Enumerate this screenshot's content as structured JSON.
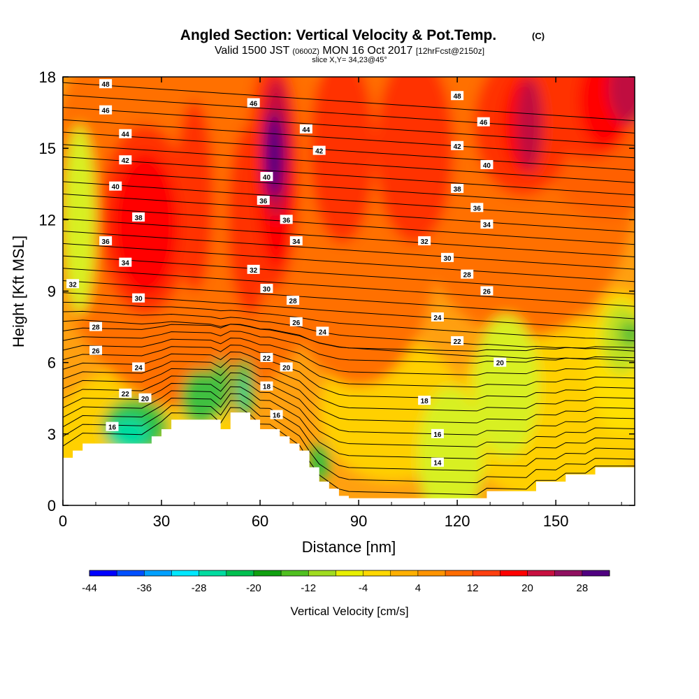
{
  "chart_data": {
    "type": "heatmap",
    "title": "Angled Section: Vertical Velocity & Pot.Temp.",
    "title_mark": "(C)",
    "subtitle_parts": [
      "Valid 1500 JST",
      "(0600Z)",
      "MON 16 Oct 2017",
      "[12hrFcst@2150z]"
    ],
    "slice_text": "slice X,Y= 34,23@45°",
    "xlabel": "Distance [nm]",
    "ylabel": "Height [Kft MSL]",
    "xlim": [
      0,
      174
    ],
    "ylim": [
      0,
      18
    ],
    "xticks": [
      "0",
      "30",
      "60",
      "90",
      "120",
      "150"
    ],
    "yticks": [
      "0",
      "3",
      "6",
      "9",
      "12",
      "15",
      "18"
    ],
    "colorbar": {
      "label": "Vertical Velocity [cm/s]",
      "tick_labels": [
        "-44",
        "-36",
        "-28",
        "-20",
        "-12",
        "-4",
        "4",
        "12",
        "20",
        "28"
      ],
      "colors": [
        "#0000ff",
        "#0050ff",
        "#00a0ff",
        "#00e8ff",
        "#00dca0",
        "#00c050",
        "#10a010",
        "#50c020",
        "#a0dc20",
        "#e8f000",
        "#ffd800",
        "#ffb000",
        "#ff9400",
        "#ff6c00",
        "#ff4010",
        "#ff0000",
        "#c81040",
        "#901060",
        "#500080"
      ]
    },
    "terrain_kft": [
      [
        0,
        2
      ],
      [
        3,
        2
      ],
      [
        3,
        2.3
      ],
      [
        6,
        2.3
      ],
      [
        6,
        2.6
      ],
      [
        27,
        2.6
      ],
      [
        27,
        2.9
      ],
      [
        30,
        2.9
      ],
      [
        30,
        3.2
      ],
      [
        33,
        3.2
      ],
      [
        33,
        3.6
      ],
      [
        48,
        3.6
      ],
      [
        48,
        3.2
      ],
      [
        51,
        3.2
      ],
      [
        51,
        3.9
      ],
      [
        57,
        3.9
      ],
      [
        57,
        3.6
      ],
      [
        60,
        3.6
      ],
      [
        60,
        3.2
      ],
      [
        66,
        3.2
      ],
      [
        66,
        2.9
      ],
      [
        69,
        2.9
      ],
      [
        69,
        2.6
      ],
      [
        72,
        2.6
      ],
      [
        72,
        2.3
      ],
      [
        75,
        2.3
      ],
      [
        75,
        1.6
      ],
      [
        78,
        1.6
      ],
      [
        78,
        1
      ],
      [
        81,
        1
      ],
      [
        81,
        0.7
      ],
      [
        84,
        0.7
      ],
      [
        84,
        0.4
      ],
      [
        87,
        0.4
      ],
      [
        87,
        0.3
      ],
      [
        129,
        0.3
      ],
      [
        129,
        0.6
      ],
      [
        144,
        0.6
      ],
      [
        144,
        1
      ],
      [
        153,
        1
      ],
      [
        153,
        1.3
      ],
      [
        162,
        1.3
      ],
      [
        162,
        1.6
      ],
      [
        174,
        1.6
      ]
    ],
    "contour_labels": [
      {
        "text": "48",
        "x": 13,
        "y": 17.7
      },
      {
        "text": "46",
        "x": 13,
        "y": 16.6
      },
      {
        "text": "44",
        "x": 19,
        "y": 15.6
      },
      {
        "text": "42",
        "x": 19,
        "y": 14.5
      },
      {
        "text": "40",
        "x": 16,
        "y": 13.4
      },
      {
        "text": "38",
        "x": 23,
        "y": 12.1
      },
      {
        "text": "36",
        "x": 13,
        "y": 11.1
      },
      {
        "text": "34",
        "x": 19,
        "y": 10.2
      },
      {
        "text": "32",
        "x": 3,
        "y": 9.3
      },
      {
        "text": "30",
        "x": 23,
        "y": 8.7
      },
      {
        "text": "28",
        "x": 10,
        "y": 7.5
      },
      {
        "text": "26",
        "x": 10,
        "y": 6.5
      },
      {
        "text": "24",
        "x": 23,
        "y": 5.8
      },
      {
        "text": "22",
        "x": 19,
        "y": 4.7
      },
      {
        "text": "20",
        "x": 25,
        "y": 4.5
      },
      {
        "text": "16",
        "x": 15,
        "y": 3.3
      },
      {
        "text": "46",
        "x": 58,
        "y": 16.9
      },
      {
        "text": "44",
        "x": 74,
        "y": 15.8
      },
      {
        "text": "42",
        "x": 78,
        "y": 14.9
      },
      {
        "text": "40",
        "x": 62,
        "y": 13.8
      },
      {
        "text": "36",
        "x": 61,
        "y": 12.8
      },
      {
        "text": "36",
        "x": 68,
        "y": 12.0
      },
      {
        "text": "34",
        "x": 71,
        "y": 11.1
      },
      {
        "text": "32",
        "x": 58,
        "y": 9.9
      },
      {
        "text": "30",
        "x": 62,
        "y": 9.1
      },
      {
        "text": "28",
        "x": 70,
        "y": 8.6
      },
      {
        "text": "26",
        "x": 71,
        "y": 7.7
      },
      {
        "text": "24",
        "x": 79,
        "y": 7.3
      },
      {
        "text": "22",
        "x": 62,
        "y": 6.2
      },
      {
        "text": "20",
        "x": 68,
        "y": 5.8
      },
      {
        "text": "18",
        "x": 62,
        "y": 5.0
      },
      {
        "text": "16",
        "x": 65,
        "y": 3.8
      },
      {
        "text": "48",
        "x": 120,
        "y": 17.2
      },
      {
        "text": "46",
        "x": 128,
        "y": 16.1
      },
      {
        "text": "42",
        "x": 120,
        "y": 15.1
      },
      {
        "text": "40",
        "x": 129,
        "y": 14.3
      },
      {
        "text": "38",
        "x": 120,
        "y": 13.3
      },
      {
        "text": "36",
        "x": 126,
        "y": 12.5
      },
      {
        "text": "34",
        "x": 129,
        "y": 11.8
      },
      {
        "text": "32",
        "x": 110,
        "y": 11.1
      },
      {
        "text": "30",
        "x": 117,
        "y": 10.4
      },
      {
        "text": "28",
        "x": 123,
        "y": 9.7
      },
      {
        "text": "26",
        "x": 129,
        "y": 9.0
      },
      {
        "text": "24",
        "x": 114,
        "y": 7.9
      },
      {
        "text": "22",
        "x": 120,
        "y": 6.9
      },
      {
        "text": "20",
        "x": 133,
        "y": 6.0
      },
      {
        "text": "18",
        "x": 110,
        "y": 4.4
      },
      {
        "text": "16",
        "x": 114,
        "y": 3.0
      },
      {
        "text": "14",
        "x": 114,
        "y": 1.8
      }
    ]
  }
}
